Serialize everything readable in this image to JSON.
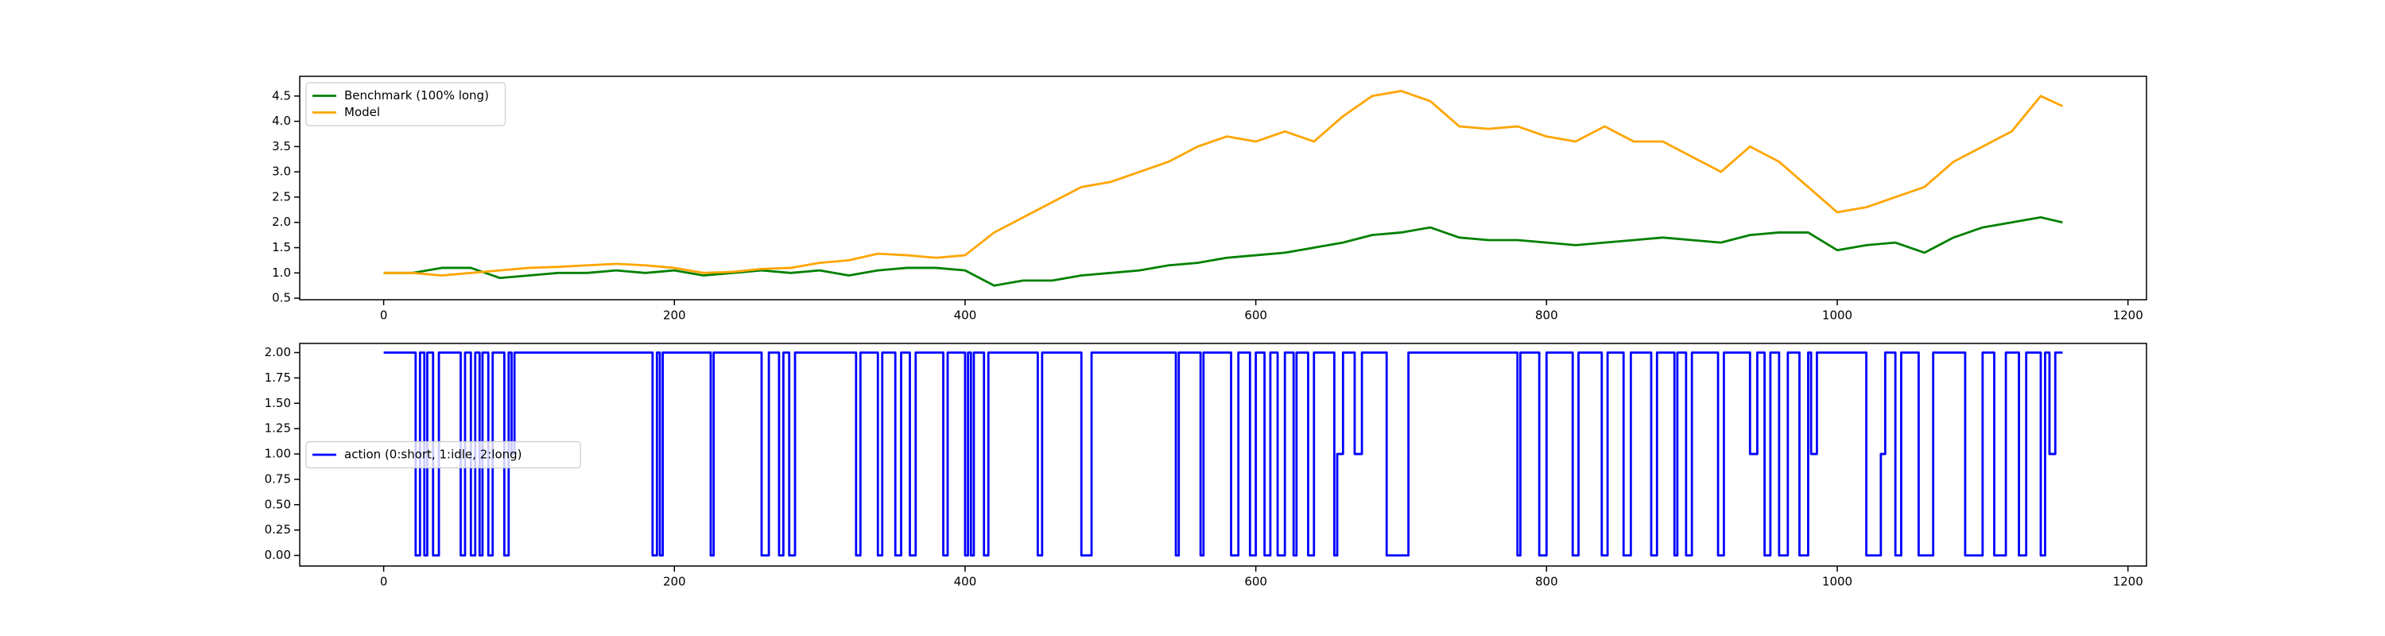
{
  "chart_data": [
    {
      "type": "line",
      "x": [
        0,
        20,
        40,
        60,
        80,
        100,
        120,
        140,
        160,
        180,
        200,
        220,
        240,
        260,
        280,
        300,
        320,
        340,
        360,
        380,
        400,
        420,
        440,
        460,
        480,
        500,
        520,
        540,
        560,
        580,
        600,
        620,
        640,
        660,
        680,
        700,
        720,
        740,
        760,
        780,
        800,
        820,
        840,
        860,
        880,
        900,
        920,
        940,
        960,
        980,
        1000,
        1020,
        1040,
        1060,
        1080,
        1100,
        1120,
        1140,
        1155
      ],
      "series": [
        {
          "name": "Benchmark (100% long)",
          "color": "#008000",
          "values": [
            1.0,
            1.0,
            1.1,
            1.1,
            0.9,
            0.95,
            1.0,
            1.0,
            1.05,
            1.0,
            1.05,
            0.95,
            1.0,
            1.05,
            1.0,
            1.05,
            0.95,
            1.05,
            1.1,
            1.1,
            1.05,
            0.75,
            0.85,
            0.85,
            0.95,
            1.0,
            1.05,
            1.15,
            1.2,
            1.3,
            1.35,
            1.4,
            1.5,
            1.6,
            1.75,
            1.8,
            1.9,
            1.7,
            1.65,
            1.65,
            1.6,
            1.55,
            1.6,
            1.65,
            1.7,
            1.65,
            1.6,
            1.75,
            1.8,
            1.8,
            1.45,
            1.55,
            1.6,
            1.4,
            1.7,
            1.9,
            2.0,
            2.1,
            2.0
          ]
        },
        {
          "name": "Model",
          "color": "#ffa500",
          "values": [
            1.0,
            1.0,
            0.95,
            1.0,
            1.05,
            1.1,
            1.12,
            1.15,
            1.18,
            1.15,
            1.1,
            1.0,
            1.02,
            1.08,
            1.1,
            1.2,
            1.25,
            1.38,
            1.35,
            1.3,
            1.35,
            1.8,
            2.1,
            2.4,
            2.7,
            2.8,
            3.0,
            3.2,
            3.5,
            3.7,
            3.6,
            3.8,
            3.6,
            4.1,
            4.5,
            4.6,
            4.4,
            3.9,
            3.85,
            3.9,
            3.7,
            3.6,
            3.9,
            3.6,
            3.6,
            3.3,
            3.0,
            3.5,
            3.2,
            2.7,
            2.2,
            2.3,
            2.5,
            2.7,
            3.2,
            3.5,
            3.8,
            4.5,
            4.3
          ]
        }
      ],
      "xlim": [
        -57.75,
        1212.75
      ],
      "xticks": [
        0,
        200,
        400,
        600,
        800,
        1000,
        1200
      ],
      "ylim": [
        0.47,
        4.89
      ],
      "yticks": [
        {
          "value": 0.5,
          "label": "0.5"
        },
        {
          "value": 1,
          "label": "1.0"
        },
        {
          "value": 1.5,
          "label": "1.5"
        },
        {
          "value": 2,
          "label": "2.0"
        },
        {
          "value": 2.5,
          "label": "2.5"
        },
        {
          "value": 3,
          "label": "3.0"
        },
        {
          "value": 3.5,
          "label": "3.5"
        },
        {
          "value": 4,
          "label": "4.0"
        },
        {
          "value": 4.5,
          "label": "4.5"
        }
      ],
      "legend": "upper left"
    },
    {
      "type": "step",
      "x": [
        0,
        22,
        25,
        28,
        30,
        34,
        38,
        53,
        56,
        60,
        63,
        66,
        68,
        72,
        75,
        83,
        86,
        88,
        90,
        185,
        188,
        190,
        192,
        225,
        227,
        260,
        265,
        272,
        275,
        279,
        283,
        325,
        328,
        340,
        343,
        352,
        356,
        362,
        366,
        385,
        388,
        400,
        402,
        404,
        406,
        413,
        416,
        450,
        453,
        480,
        487,
        545,
        547,
        562,
        564,
        583,
        588,
        596,
        600,
        606,
        610,
        615,
        620,
        626,
        628,
        636,
        640,
        654,
        656,
        660,
        668,
        673,
        690,
        705,
        780,
        782,
        795,
        800,
        818,
        822,
        838,
        842,
        853,
        858,
        872,
        876,
        888,
        890,
        896,
        900,
        918,
        922,
        940,
        945,
        950,
        954,
        960,
        966,
        974,
        980,
        982,
        986,
        1020,
        1030,
        1033,
        1040,
        1044,
        1056,
        1066,
        1088,
        1100,
        1108,
        1116,
        1125,
        1130,
        1140,
        1143,
        1146,
        1150,
        1155
      ],
      "series": [
        {
          "name": "action (0:short, 1:idle, 2:long)",
          "color": "#0000ff",
          "values": [
            2,
            0,
            2,
            0,
            2,
            0,
            2,
            0,
            2,
            0,
            2,
            0,
            2,
            0,
            2,
            0,
            2,
            1,
            2,
            0,
            2,
            0,
            2,
            0,
            2,
            0,
            2,
            0,
            2,
            0,
            2,
            0,
            2,
            0,
            2,
            0,
            2,
            0,
            2,
            0,
            2,
            0,
            2,
            0,
            2,
            0,
            2,
            0,
            2,
            0,
            2,
            0,
            2,
            0,
            2,
            0,
            2,
            0,
            2,
            0,
            2,
            0,
            2,
            0,
            2,
            0,
            2,
            0,
            1,
            2,
            1,
            2,
            0,
            2,
            0,
            2,
            0,
            2,
            0,
            2,
            0,
            2,
            0,
            2,
            0,
            2,
            0,
            2,
            0,
            2,
            0,
            2,
            1,
            2,
            0,
            2,
            0,
            2,
            0,
            2,
            1,
            2,
            0,
            1,
            2,
            0,
            2,
            0,
            2,
            0,
            2,
            0,
            2,
            0,
            2,
            0,
            2,
            1,
            2,
            2
          ]
        }
      ],
      "xlim": [
        -57.75,
        1212.75
      ],
      "xticks": [
        0,
        200,
        400,
        600,
        800,
        1000,
        1200
      ],
      "ylim": [
        -0.105,
        2.09
      ],
      "yticks": [
        {
          "value": 0,
          "label": "0.00"
        },
        {
          "value": 0.25,
          "label": "0.25"
        },
        {
          "value": 0.5,
          "label": "0.50"
        },
        {
          "value": 0.75,
          "label": "0.75"
        },
        {
          "value": 1,
          "label": "1.00"
        },
        {
          "value": 1.25,
          "label": "1.25"
        },
        {
          "value": 1.5,
          "label": "1.50"
        },
        {
          "value": 1.75,
          "label": "1.75"
        },
        {
          "value": 2,
          "label": "2.00"
        }
      ],
      "legend": "center left"
    }
  ]
}
